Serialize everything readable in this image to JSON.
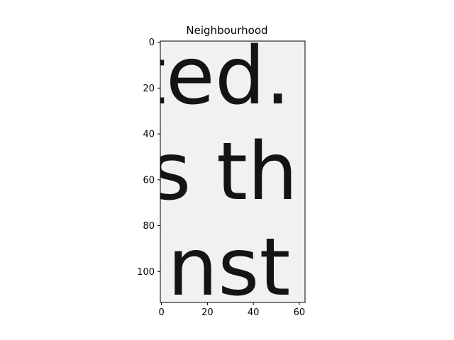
{
  "figure": {
    "title": "Neighbourhood",
    "image": {
      "text_lines": [
        "ted.",
        "s thi",
        "inst"
      ],
      "background": "#f1f1f1",
      "ink": "#141414"
    },
    "x_axis": {
      "ticks": [
        {
          "value": 0,
          "label": "0"
        },
        {
          "value": 20,
          "label": "20"
        },
        {
          "value": 40,
          "label": "40"
        },
        {
          "value": 60,
          "label": "60"
        }
      ],
      "range": [
        -0.5,
        62.5
      ]
    },
    "y_axis": {
      "ticks": [
        {
          "value": 0,
          "label": "0"
        },
        {
          "value": 20,
          "label": "20"
        },
        {
          "value": 40,
          "label": "40"
        },
        {
          "value": 60,
          "label": "60"
        },
        {
          "value": 80,
          "label": "80"
        },
        {
          "value": 100,
          "label": "100"
        }
      ],
      "range": [
        -0.5,
        113.5
      ]
    }
  }
}
